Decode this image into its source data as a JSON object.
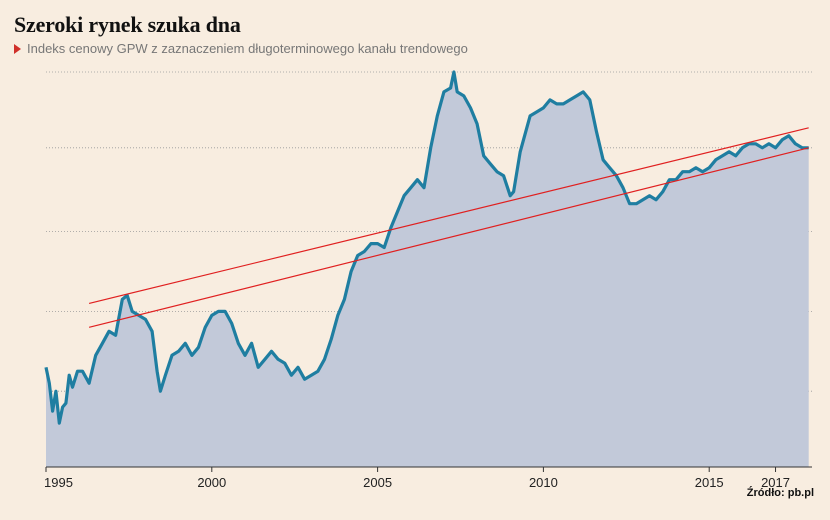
{
  "title": "Szeroki rynek szuka dna",
  "subtitle": "Indeks cenowy GPW z zaznaczeniem długoterminowego kanału trendowego",
  "source": "Źródło: pb.pl",
  "colors": {
    "background": "#f8ede0",
    "area_fill": "#c2c9d9",
    "line": "#1f7ea1",
    "trend": "#e02020",
    "grid": "#999999"
  },
  "chart_data": {
    "type": "area",
    "xlim": [
      1995,
      2018.1
    ],
    "ylim": [
      0,
      100
    ],
    "y_axis_labels": "none",
    "grid": "horizontal dotted",
    "x_ticks": [
      {
        "value": 1995,
        "label": "1995"
      },
      {
        "value": 2000,
        "label": "2000"
      },
      {
        "value": 2005,
        "label": "2005"
      },
      {
        "value": 2010,
        "label": "2010"
      },
      {
        "value": 2015,
        "label": "2015"
      },
      {
        "value": 2017,
        "label": "2017"
      }
    ],
    "y_gridlines": [
      19,
      39,
      59,
      80,
      99
    ],
    "series": [
      {
        "values": [
          [
            1995.0,
            25
          ],
          [
            1995.1,
            21
          ],
          [
            1995.2,
            14
          ],
          [
            1995.3,
            19
          ],
          [
            1995.4,
            11
          ],
          [
            1995.5,
            15
          ],
          [
            1995.6,
            16
          ],
          [
            1995.7,
            23
          ],
          [
            1995.8,
            20
          ],
          [
            1995.95,
            24
          ],
          [
            1996.1,
            24
          ],
          [
            1996.3,
            21
          ],
          [
            1996.5,
            28
          ],
          [
            1996.7,
            31
          ],
          [
            1996.9,
            34
          ],
          [
            1997.1,
            33
          ],
          [
            1997.3,
            42
          ],
          [
            1997.45,
            43
          ],
          [
            1997.6,
            39
          ],
          [
            1997.8,
            38
          ],
          [
            1998.0,
            37
          ],
          [
            1998.2,
            34
          ],
          [
            1998.35,
            24
          ],
          [
            1998.45,
            19
          ],
          [
            1998.6,
            23
          ],
          [
            1998.8,
            28
          ],
          [
            1999.0,
            29
          ],
          [
            1999.2,
            31
          ],
          [
            1999.4,
            28
          ],
          [
            1999.6,
            30
          ],
          [
            1999.8,
            35
          ],
          [
            2000.0,
            38
          ],
          [
            2000.2,
            39
          ],
          [
            2000.4,
            39
          ],
          [
            2000.6,
            36
          ],
          [
            2000.8,
            31
          ],
          [
            2001.0,
            28
          ],
          [
            2001.2,
            31
          ],
          [
            2001.4,
            25
          ],
          [
            2001.6,
            27
          ],
          [
            2001.8,
            29
          ],
          [
            2002.0,
            27
          ],
          [
            2002.2,
            26
          ],
          [
            2002.4,
            23
          ],
          [
            2002.6,
            25
          ],
          [
            2002.8,
            22
          ],
          [
            2003.0,
            23
          ],
          [
            2003.2,
            24
          ],
          [
            2003.4,
            27
          ],
          [
            2003.6,
            32
          ],
          [
            2003.8,
            38
          ],
          [
            2004.0,
            42
          ],
          [
            2004.2,
            49
          ],
          [
            2004.4,
            53
          ],
          [
            2004.6,
            54
          ],
          [
            2004.8,
            56
          ],
          [
            2005.0,
            56
          ],
          [
            2005.2,
            55
          ],
          [
            2005.4,
            60
          ],
          [
            2005.6,
            64
          ],
          [
            2005.8,
            68
          ],
          [
            2006.0,
            70
          ],
          [
            2006.2,
            72
          ],
          [
            2006.4,
            70
          ],
          [
            2006.6,
            80
          ],
          [
            2006.8,
            88
          ],
          [
            2007.0,
            94
          ],
          [
            2007.2,
            95
          ],
          [
            2007.3,
            99
          ],
          [
            2007.4,
            94
          ],
          [
            2007.6,
            93
          ],
          [
            2007.8,
            90
          ],
          [
            2008.0,
            86
          ],
          [
            2008.2,
            78
          ],
          [
            2008.4,
            76
          ],
          [
            2008.6,
            74
          ],
          [
            2008.8,
            73
          ],
          [
            2009.0,
            68
          ],
          [
            2009.1,
            69
          ],
          [
            2009.3,
            79
          ],
          [
            2009.6,
            88
          ],
          [
            2009.8,
            89
          ],
          [
            2010.0,
            90
          ],
          [
            2010.2,
            92
          ],
          [
            2010.4,
            91
          ],
          [
            2010.6,
            91
          ],
          [
            2010.8,
            92
          ],
          [
            2011.0,
            93
          ],
          [
            2011.2,
            94
          ],
          [
            2011.4,
            92
          ],
          [
            2011.6,
            84
          ],
          [
            2011.8,
            77
          ],
          [
            2012.0,
            75
          ],
          [
            2012.2,
            73
          ],
          [
            2012.4,
            70
          ],
          [
            2012.6,
            66
          ],
          [
            2012.8,
            66
          ],
          [
            2013.0,
            67
          ],
          [
            2013.2,
            68
          ],
          [
            2013.4,
            67
          ],
          [
            2013.6,
            69
          ],
          [
            2013.8,
            72
          ],
          [
            2014.0,
            72
          ],
          [
            2014.2,
            74
          ],
          [
            2014.4,
            74
          ],
          [
            2014.6,
            75
          ],
          [
            2014.8,
            74
          ],
          [
            2015.0,
            75
          ],
          [
            2015.2,
            77
          ],
          [
            2015.4,
            78
          ],
          [
            2015.6,
            79
          ],
          [
            2015.8,
            78
          ],
          [
            2016.0,
            80
          ],
          [
            2016.2,
            81
          ],
          [
            2016.4,
            81
          ],
          [
            2016.6,
            80
          ],
          [
            2016.8,
            81
          ],
          [
            2017.0,
            80
          ],
          [
            2017.2,
            82
          ],
          [
            2017.4,
            83
          ],
          [
            2017.6,
            81
          ],
          [
            2017.8,
            80
          ],
          [
            2018.0,
            80
          ]
        ]
      }
    ],
    "trend_lines": [
      {
        "x": [
          1996.3,
          2018.0
        ],
        "y": [
          41,
          85
        ]
      },
      {
        "x": [
          1996.3,
          2018.0
        ],
        "y": [
          35,
          80
        ]
      }
    ]
  }
}
